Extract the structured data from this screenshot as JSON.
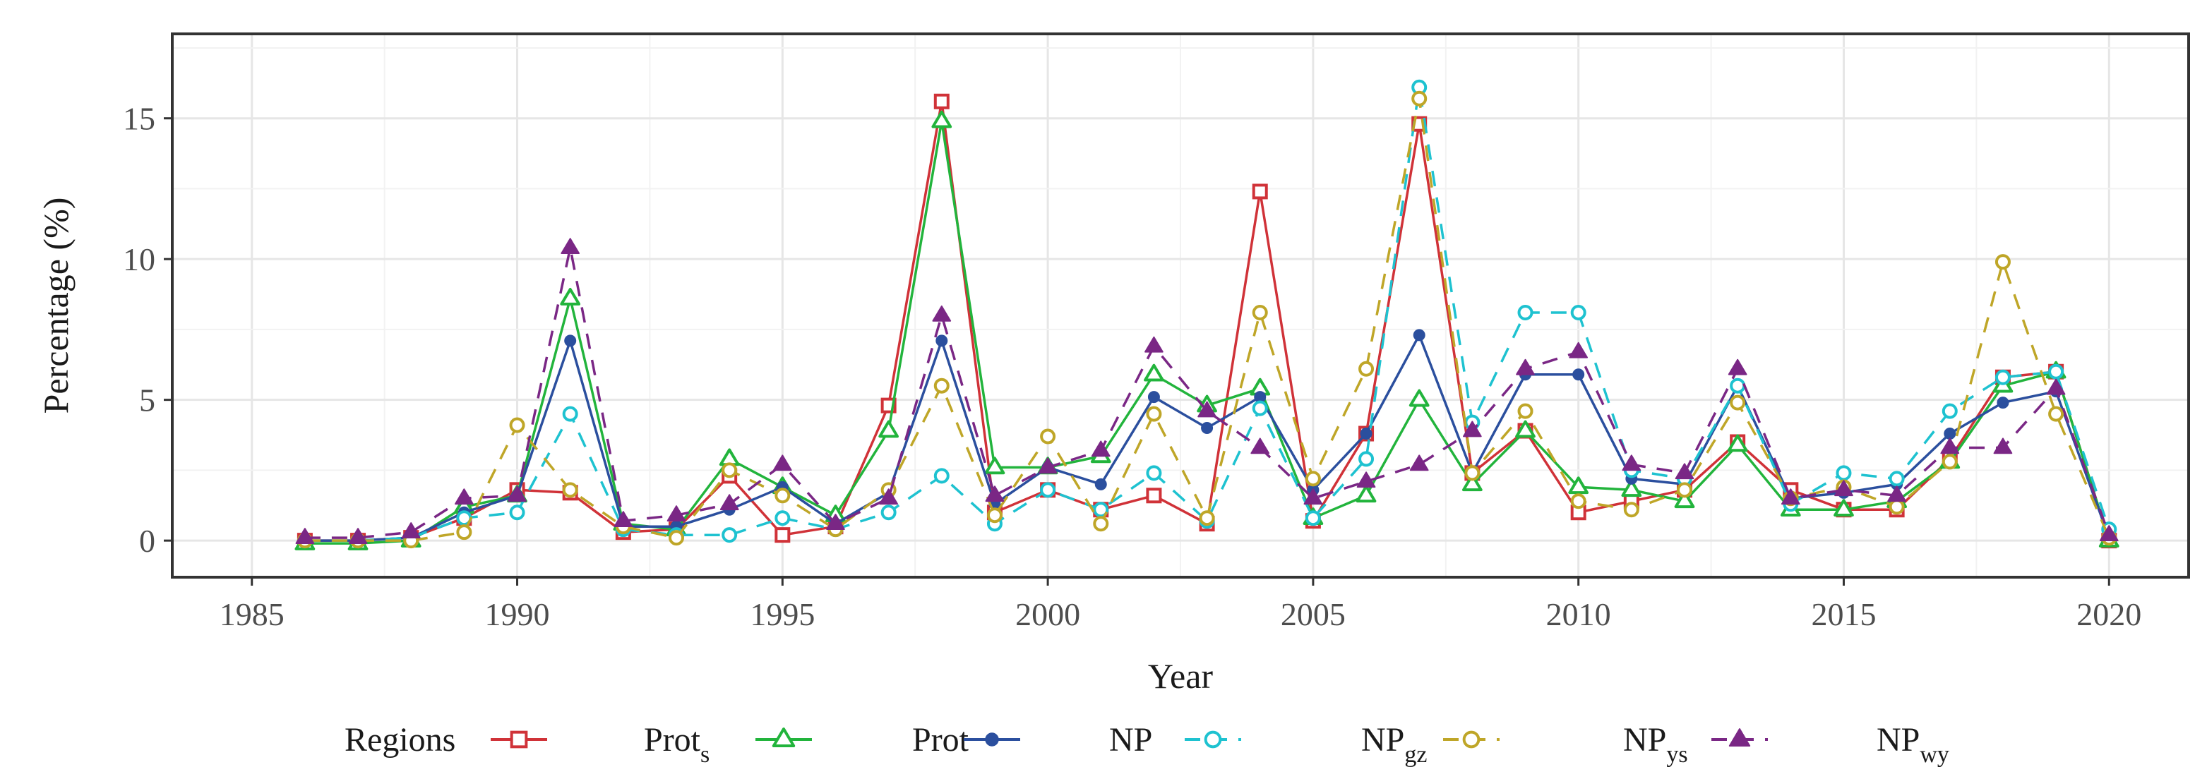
{
  "chart_data": {
    "type": "line",
    "title": "",
    "xlabel": "Year",
    "ylabel": "Percentage (%)",
    "xlim": [
      1983.5,
      2021.5
    ],
    "ylim": [
      -1.3,
      18.0
    ],
    "x_ticks": [
      1985,
      1990,
      1995,
      2000,
      2005,
      2010,
      2015,
      2020
    ],
    "x_tick_labels": [
      "1985",
      "1990",
      "1995",
      "2000",
      "2005",
      "2010",
      "2015",
      "2020"
    ],
    "y_ticks": [
      0,
      5,
      10,
      15
    ],
    "y_tick_labels": [
      "0",
      "5",
      "10",
      "15"
    ],
    "grid": true,
    "legend_title": "Regions",
    "legend_position": "bottom",
    "x": [
      1986,
      1987,
      1988,
      1989,
      1990,
      1991,
      1992,
      1993,
      1994,
      1995,
      1996,
      1997,
      1998,
      1999,
      2000,
      2001,
      2002,
      2003,
      2004,
      2005,
      2006,
      2007,
      2008,
      2009,
      2010,
      2011,
      2012,
      2013,
      2014,
      2015,
      2016,
      2017,
      2018,
      2019,
      2020
    ],
    "series": [
      {
        "name": "Prot",
        "sub": "s",
        "color": "#d03238",
        "dash": "solid",
        "marker": "square",
        "values": [
          0.0,
          0.0,
          0.1,
          0.8,
          1.8,
          1.7,
          0.3,
          0.4,
          2.3,
          0.2,
          0.5,
          4.8,
          15.6,
          1.0,
          1.8,
          1.1,
          1.6,
          0.6,
          12.4,
          0.7,
          3.8,
          14.8,
          2.4,
          3.9,
          1.0,
          1.4,
          1.8,
          3.5,
          1.8,
          1.1,
          1.1,
          2.9,
          5.8,
          6.0,
          0.0
        ]
      },
      {
        "name": "Prot",
        "sub": "",
        "color": "#22b43c",
        "dash": "solid",
        "marker": "triangle",
        "values": [
          -0.1,
          -0.1,
          0.0,
          1.2,
          1.6,
          8.6,
          0.6,
          0.4,
          2.9,
          1.9,
          0.9,
          3.9,
          14.9,
          2.6,
          2.6,
          3.0,
          5.9,
          4.8,
          5.4,
          0.8,
          1.6,
          5.0,
          2.0,
          3.9,
          1.9,
          1.8,
          1.4,
          3.4,
          1.1,
          1.1,
          1.4,
          2.8,
          5.5,
          6.0,
          0.0
        ]
      },
      {
        "name": "NP",
        "sub": "",
        "color": "#2b4f9e",
        "dash": "solid",
        "marker": "dot",
        "values": [
          0.0,
          0.0,
          0.1,
          1.0,
          1.6,
          7.1,
          0.5,
          0.5,
          1.1,
          1.9,
          0.6,
          1.7,
          7.1,
          1.3,
          2.6,
          2.0,
          5.1,
          4.0,
          5.1,
          1.8,
          3.8,
          7.3,
          2.4,
          5.9,
          5.9,
          2.2,
          2.0,
          5.5,
          1.5,
          1.7,
          2.0,
          3.8,
          4.9,
          5.3,
          0.1
        ]
      },
      {
        "name": "NP",
        "sub": "gz",
        "color": "#1ec2d0",
        "dash": "dash",
        "marker": "circle",
        "values": [
          0.0,
          0.0,
          0.1,
          0.8,
          1.0,
          4.5,
          0.4,
          0.2,
          0.2,
          0.8,
          0.4,
          1.0,
          2.3,
          0.6,
          1.8,
          1.1,
          2.4,
          0.7,
          4.7,
          0.8,
          2.9,
          16.1,
          4.2,
          8.1,
          8.1,
          2.5,
          2.2,
          5.5,
          1.3,
          2.4,
          2.2,
          4.6,
          5.8,
          6.0,
          0.4
        ]
      },
      {
        "name": "NP",
        "sub": "ys",
        "color": "#bfa628",
        "dash": "dash",
        "marker": "circle",
        "values": [
          0.0,
          0.0,
          0.0,
          0.3,
          4.1,
          1.8,
          0.5,
          0.1,
          2.5,
          1.6,
          0.4,
          1.8,
          5.5,
          0.9,
          3.7,
          0.6,
          4.5,
          0.8,
          8.1,
          2.2,
          6.1,
          15.7,
          2.4,
          4.6,
          1.4,
          1.1,
          1.8,
          4.9,
          1.5,
          1.9,
          1.2,
          2.8,
          9.9,
          4.5,
          0.1
        ]
      },
      {
        "name": "NP",
        "sub": "wy",
        "color": "#7a2785",
        "dash": "dash",
        "marker": "triangle-filled",
        "values": [
          0.1,
          0.1,
          0.3,
          1.5,
          1.6,
          10.4,
          0.7,
          0.9,
          1.3,
          2.7,
          0.6,
          1.5,
          8.0,
          1.6,
          2.6,
          3.2,
          6.9,
          4.6,
          3.3,
          1.5,
          2.1,
          2.7,
          3.9,
          6.1,
          6.7,
          2.7,
          2.4,
          6.1,
          1.5,
          1.8,
          1.6,
          3.3,
          3.3,
          5.4,
          0.2
        ]
      }
    ]
  }
}
